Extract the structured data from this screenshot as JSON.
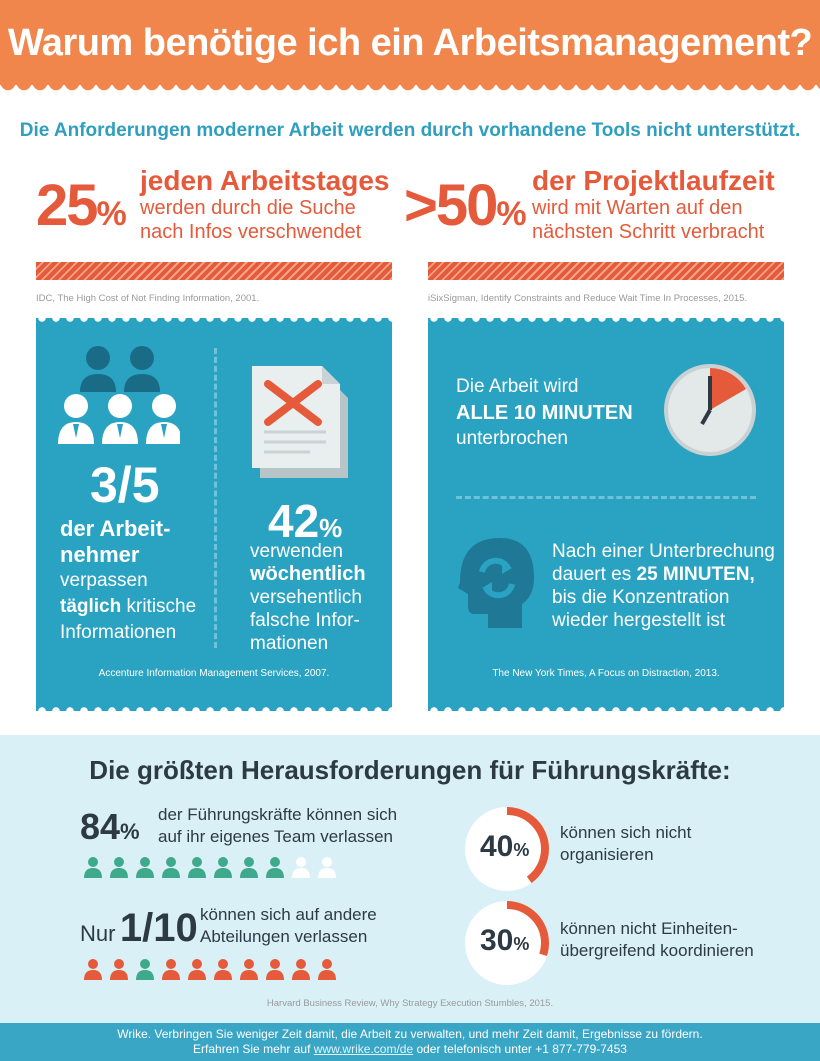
{
  "header": {
    "title": "Warum benötige ich ein Arbeitsmanagement?"
  },
  "subtitle": "Die Anforderungen moderner Arbeit werden durch vorhandene Tools nicht unterstützt.",
  "stats": [
    {
      "number": "25",
      "percent": "%",
      "heading": "jeden Arbeitstages",
      "line1": "werden durch die Suche",
      "line2": "nach Infos verschwendet",
      "source": "IDC, The High Cost of Not Finding Information, 2001."
    },
    {
      "number": ">50",
      "percent": "%",
      "heading": "der Projektlaufzeit",
      "line1": "wird mit Warten auf den",
      "line2": "nächsten Schritt verbracht",
      "source": "iSixSigman, Identify Constraints and Reduce Wait Time In Processes, 2015."
    }
  ],
  "left_panel": {
    "fraction": "3/5",
    "fraction_text": {
      "bold1": "der Arbeit-",
      "bold2": "nehmer",
      "l1": "verpassen",
      "bold3": "täglich",
      "l2": " kritische",
      "l3": "Informationen"
    },
    "percent_num": "42",
    "percent_sign": "%",
    "percent_text": {
      "l1": "verwenden",
      "bold1": "wöchentlich",
      "l2": "versehentlich",
      "l3": "falsche Infor-",
      "l4": "mationen"
    },
    "source": "Accenture Information Management Services, 2007."
  },
  "right_panel": {
    "interrupt": {
      "l1": "Die Arbeit wird",
      "bold": "ALLE 10 MINUTEN",
      "l2": "unterbrochen"
    },
    "recover": {
      "l1": "Nach einer Unterbrechung",
      "l2a": "dauert es ",
      "l2bold": "25 MINUTEN,",
      "l3": "bis die Konzentration",
      "l4": "wieder hergestellt ist"
    },
    "source": "The New York Times, A Focus on Distraction, 2013."
  },
  "leaders": {
    "title": "Die größten Herausforderungen für Führungskräfte:",
    "team": {
      "number": "84",
      "percent": "%",
      "l1": "der Führungskräfte können sich",
      "l2": "auf ihr eigenes Team verlassen",
      "filled": 8,
      "total": 10
    },
    "other": {
      "prefix": "Nur",
      "number": "1/10",
      "l1": "können sich auf andere",
      "l2": "Abteilungen verlassen",
      "highlight": 1,
      "total": 10
    },
    "organize": {
      "number": "40",
      "percent": "%",
      "l1": "können sich nicht",
      "l2": "organisieren",
      "value": 40
    },
    "coordinate": {
      "number": "30",
      "percent": "%",
      "l1": "können nicht Einheiten-",
      "l2": "übergreifend koordinieren",
      "value": 30
    },
    "source": "Harvard Business Review, Why Strategy Execution Stumbles, 2015."
  },
  "footer": {
    "l1": "Wrike. Verbringen Sie weniger Zeit damit, die Arbeit zu verwalten, und mehr Zeit damit, Ergebnisse zu fördern.",
    "l2a": "Erfahren Sie mehr auf ",
    "link": "www.wrike.com/de",
    "l2b": " oder telefonisch unter +1 877-779-7453"
  },
  "colors": {
    "orange": "#f0864c",
    "red": "#e55a3a",
    "teal": "#2aa3c2",
    "green": "#3fa98b",
    "dark": "#2d3a44"
  }
}
